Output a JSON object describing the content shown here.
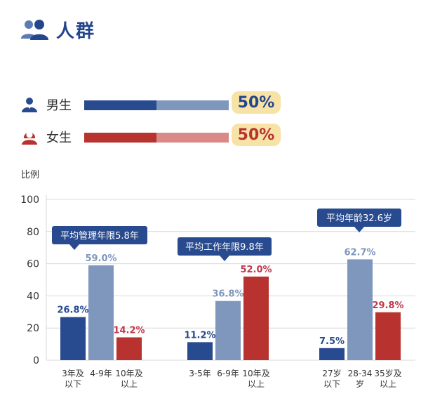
{
  "header": {
    "title": "人群",
    "icon": "users-icon"
  },
  "gender": {
    "male": {
      "label": "男生",
      "percent_text": "50%",
      "value": 50,
      "icon": "male-user-icon",
      "color_dark": "#284a8e",
      "color_light": "#7f97bd"
    },
    "female": {
      "label": "女生",
      "percent_text": "50%",
      "value": 50,
      "icon": "female-user-icon",
      "color_dark": "#b8332f",
      "color_light": "#d98a87"
    }
  },
  "chart_data": {
    "type": "bar",
    "ylabel": "比例",
    "ylim": [
      0,
      100
    ],
    "yticks": [
      0,
      20,
      40,
      60,
      80,
      100
    ],
    "grid": true,
    "groups": [
      {
        "callout": "平均管理年限5.8年",
        "bars": [
          {
            "label": [
              "3年及",
              "以下"
            ],
            "value": 26.8,
            "text": "26.8%",
            "color": "#284a8e",
            "label_color": "#284a8e"
          },
          {
            "label": [
              "4-9年"
            ],
            "value": 59.0,
            "text": "59.0%",
            "color": "#7f97bd",
            "label_color": "#7f97bd"
          },
          {
            "label": [
              "10年及",
              "以上"
            ],
            "value": 14.2,
            "text": "14.2%",
            "color": "#b8332f",
            "label_color": "#c0394b"
          }
        ]
      },
      {
        "callout": "平均工作年限9.8年",
        "bars": [
          {
            "label": [
              "3-5年"
            ],
            "value": 11.2,
            "text": "11.2%",
            "color": "#284a8e",
            "label_color": "#284a8e"
          },
          {
            "label": [
              "6-9年"
            ],
            "value": 36.8,
            "text": "36.8%",
            "color": "#7f97bd",
            "label_color": "#7f97bd"
          },
          {
            "label": [
              "10年及",
              "以上"
            ],
            "value": 52.0,
            "text": "52.0%",
            "color": "#b8332f",
            "label_color": "#c0394b"
          }
        ]
      },
      {
        "callout": "平均年龄32.6岁",
        "bars": [
          {
            "label": [
              "27岁",
              "以下"
            ],
            "value": 7.5,
            "text": "7.5%",
            "color": "#284a8e",
            "label_color": "#284a8e"
          },
          {
            "label": [
              "28-34",
              "岁"
            ],
            "value": 62.7,
            "text": "62.7%",
            "color": "#7f97bd",
            "label_color": "#7f97bd"
          },
          {
            "label": [
              "35岁及",
              "以上"
            ],
            "value": 29.8,
            "text": "29.8%",
            "color": "#b8332f",
            "label_color": "#c0394b"
          }
        ]
      }
    ]
  }
}
